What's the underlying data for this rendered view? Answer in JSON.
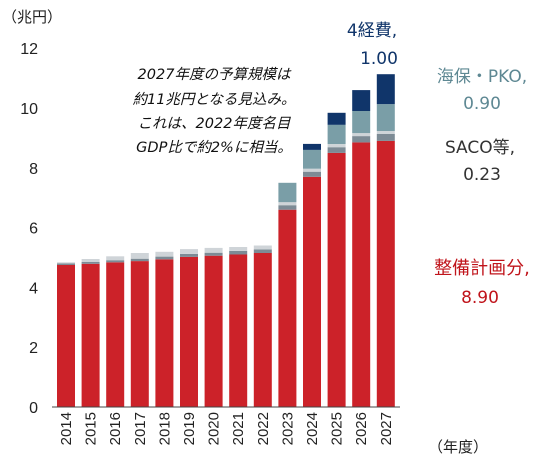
{
  "chart_data": {
    "type": "bar",
    "stacked": true,
    "y_unit": "（兆円）",
    "x_unit": "（年度）",
    "categories": [
      "2014",
      "2015",
      "2016",
      "2017",
      "2018",
      "2019",
      "2020",
      "2021",
      "2022",
      "2023",
      "2024",
      "2025",
      "2026",
      "2027"
    ],
    "yticks": [
      0,
      2,
      4,
      6,
      8,
      10,
      12
    ],
    "ylim": [
      0,
      12
    ],
    "grid": false,
    "series": [
      {
        "key": "seibi",
        "color": "#cc2229",
        "values": [
          4.75,
          4.79,
          4.84,
          4.88,
          4.94,
          5.02,
          5.06,
          5.1,
          5.15,
          6.6,
          7.7,
          8.5,
          8.85,
          8.9
        ]
      },
      {
        "key": "saco",
        "color": "#7d8b95",
        "values": [
          0.05,
          0.06,
          0.07,
          0.08,
          0.09,
          0.1,
          0.1,
          0.12,
          0.12,
          0.15,
          0.17,
          0.19,
          0.21,
          0.23
        ]
      },
      {
        "key": "hoan",
        "color": "#cfd4d8",
        "values": [
          0.04,
          0.1,
          0.13,
          0.19,
          0.16,
          0.16,
          0.16,
          0.13,
          0.13,
          0.1,
          0.1,
          0.1,
          0.1,
          0.1
        ]
      },
      {
        "key": "pko",
        "color": "#7a9ea7",
        "values": [
          0.0,
          0.0,
          0.0,
          0.0,
          0.0,
          0.0,
          0.0,
          0.0,
          0.0,
          0.65,
          0.63,
          0.65,
          0.74,
          0.9
        ]
      },
      {
        "key": "keihi",
        "color": "#10356a",
        "values": [
          0.0,
          0.0,
          0.0,
          0.0,
          0.0,
          0.0,
          0.0,
          0.0,
          0.0,
          0.0,
          0.2,
          0.4,
          0.7,
          1.0
        ]
      }
    ],
    "annotations": {
      "note_lines": [
        "2027年度の予算規模は",
        "約11兆円となる見込み。",
        "これは、2022年度名目",
        "GDP比で約2%に相当。"
      ],
      "keihi_name": "4経費,",
      "keihi_value": "1.00",
      "pko_name": "海保・PKO,",
      "pko_value": "0.90",
      "saco_name": "SACO等,",
      "saco_value": "0.23",
      "seibi_name": "整備計画分,",
      "seibi_value": "8.90"
    }
  }
}
